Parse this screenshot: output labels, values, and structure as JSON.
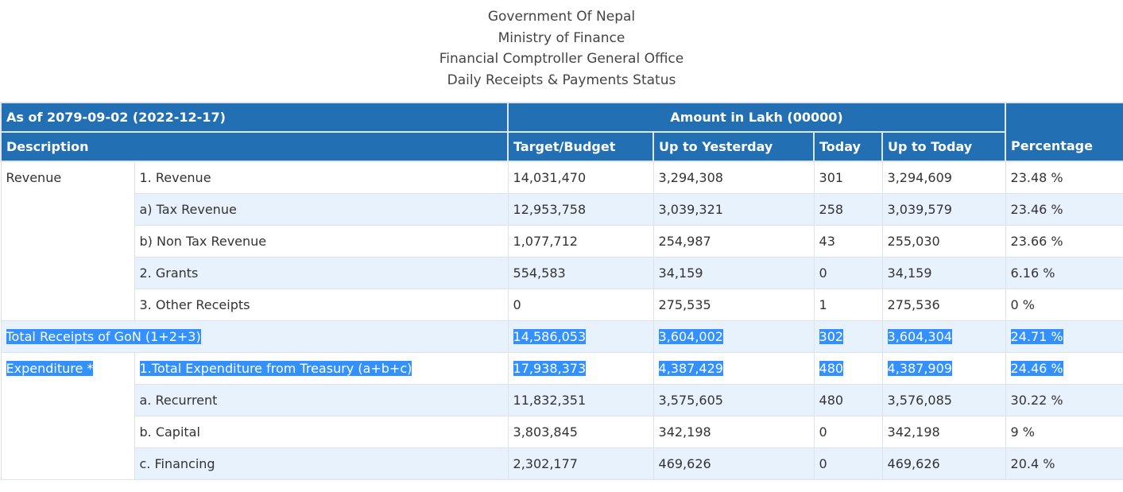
{
  "titles": [
    "Government Of Nepal",
    "Ministry of Finance",
    "Financial Comptroller General Office",
    "Daily Receipts & Payments Status"
  ],
  "header": {
    "as_of": "As of 2079-09-02 (2022-12-17)",
    "amount_label": "Amount in Lakh (00000)",
    "columns": [
      "Description",
      "Target/Budget",
      "Up to Yesterday",
      "Today",
      "Up to Today",
      "Percentage"
    ]
  },
  "revenue": {
    "category": "Revenue",
    "rows": [
      {
        "desc": "1. Revenue",
        "target": "14,031,470",
        "yesterday": "3,294,308",
        "today": "301",
        "up_to_today": "3,294,609",
        "pct": "23.48 %"
      },
      {
        "desc": "a) Tax Revenue",
        "target": "12,953,758",
        "yesterday": "3,039,321",
        "today": "258",
        "up_to_today": "3,039,579",
        "pct": "23.46 %"
      },
      {
        "desc": "b) Non Tax Revenue",
        "target": "1,077,712",
        "yesterday": "254,987",
        "today": "43",
        "up_to_today": "255,030",
        "pct": "23.66 %"
      },
      {
        "desc": "2. Grants",
        "target": "554,583",
        "yesterday": "34,159",
        "today": "0",
        "up_to_today": "34,159",
        "pct": "6.16 %"
      },
      {
        "desc": "3. Other Receipts",
        "target": "0",
        "yesterday": "275,535",
        "today": "1",
        "up_to_today": "275,536",
        "pct": "0 %"
      }
    ]
  },
  "total": {
    "desc": "Total Receipts of GoN (1+2+3)",
    "target": "14,586,053",
    "yesterday": "3,604,002",
    "today": "302",
    "up_to_today": "3,604,304",
    "pct": "24.71 %"
  },
  "expenditure": {
    "category": "Expenditure *",
    "rows": [
      {
        "desc": "1.Total Expenditure from Treasury (a+b+c)",
        "target": "17,938,373",
        "yesterday": "4,387,429",
        "today": "480",
        "up_to_today": "4,387,909",
        "pct": "24.46 %"
      },
      {
        "desc": "a. Recurrent",
        "target": "11,832,351",
        "yesterday": "3,575,605",
        "today": "480",
        "up_to_today": "3,576,085",
        "pct": "30.22 %"
      },
      {
        "desc": "b. Capital",
        "target": "3,803,845",
        "yesterday": "342,198",
        "today": "0",
        "up_to_today": "342,198",
        "pct": "9 %"
      },
      {
        "desc": "c. Financing",
        "target": "2,302,177",
        "yesterday": "469,626",
        "today": "0",
        "up_to_today": "469,626",
        "pct": "20.4 %"
      }
    ]
  }
}
